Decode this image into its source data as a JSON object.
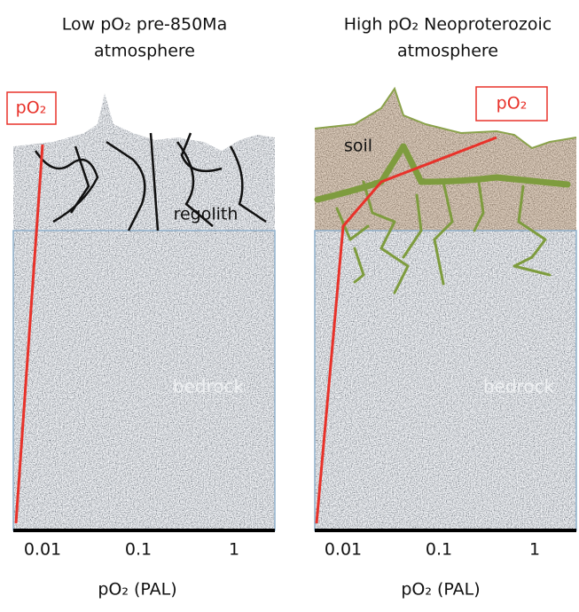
{
  "panels": [
    {
      "title": [
        "Low pO₂ pre-850Ma",
        "atmosphere"
      ],
      "o2_label": "pO₂",
      "layers": [
        "regolith",
        "bedrock"
      ],
      "x_ticks": [
        0.01,
        0.1,
        1
      ],
      "x_label": "pO₂ (PAL)"
    },
    {
      "title": [
        "High pO₂ Neoproterozoic",
        "atmosphere"
      ],
      "o2_label": "pO₂",
      "layers": [
        "soil",
        "bedrock"
      ],
      "x_ticks": [
        0.01,
        0.1,
        1
      ],
      "x_label": "pO₂ (PAL)"
    }
  ]
}
